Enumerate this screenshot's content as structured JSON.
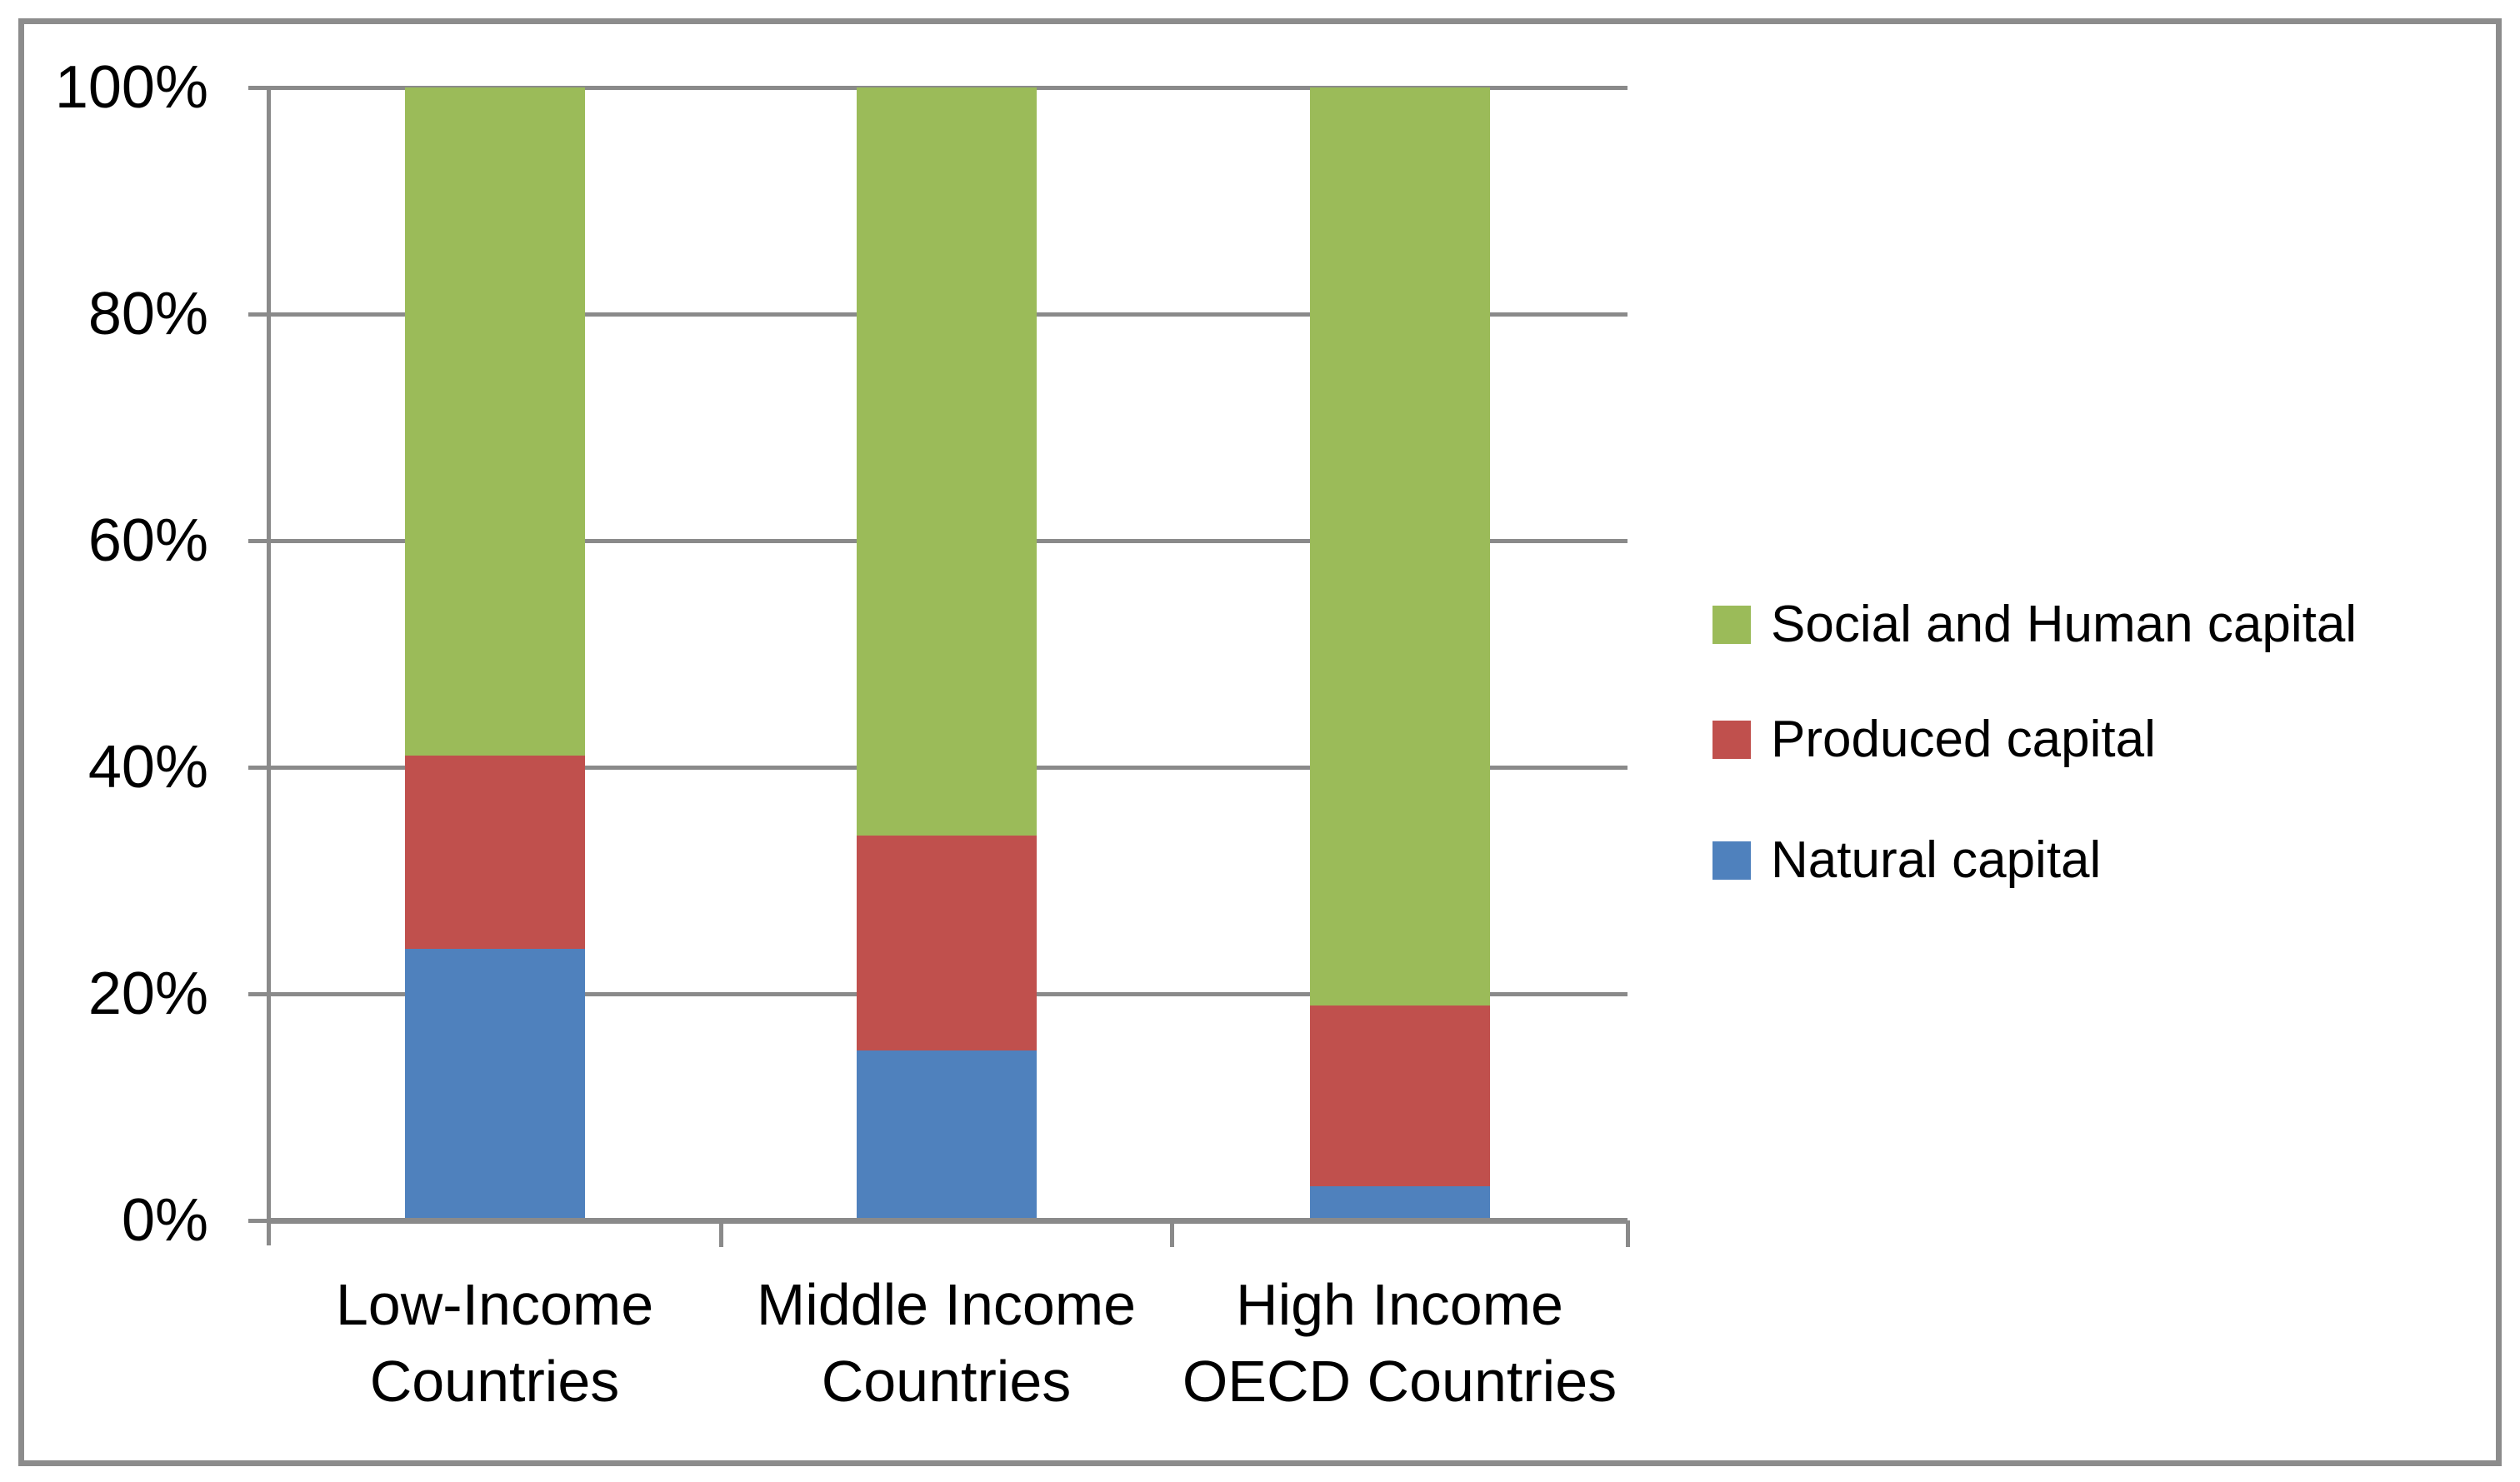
{
  "chart_data": {
    "type": "bar",
    "variant": "100%-stacked-column",
    "title": "",
    "categories": [
      {
        "label_lines": [
          "Low-Income",
          "Countries"
        ]
      },
      {
        "label_lines": [
          "Middle Income",
          "Countries"
        ]
      },
      {
        "label_lines": [
          "High Income",
          "OECD Countries"
        ]
      }
    ],
    "series": [
      {
        "name": "Natural capital",
        "color": "#4F81BD",
        "values": [
          24,
          15,
          3
        ]
      },
      {
        "name": "Produced capital",
        "color": "#C0504D",
        "values": [
          17,
          19,
          16
        ]
      },
      {
        "name": "Social and Human capital",
        "color": "#9BBB59",
        "values": [
          59,
          66,
          81
        ]
      }
    ],
    "y_ticks": [
      "0%",
      "20%",
      "40%",
      "60%",
      "80%",
      "100%"
    ],
    "ylim": [
      0,
      100
    ],
    "grid": true,
    "legend_position": "right",
    "legend_items": [
      {
        "label": "Social and Human capital",
        "color": "#9BBB59"
      },
      {
        "label": "Produced capital",
        "color": "#C0504D"
      },
      {
        "label": "Natural capital",
        "color": "#4F81BD"
      }
    ]
  },
  "colors": {
    "background": "#ffffff",
    "frame": "#8c8c8c",
    "grid": "#8a8a8a",
    "axis": "#8a8a8a",
    "text": "#000000"
  }
}
